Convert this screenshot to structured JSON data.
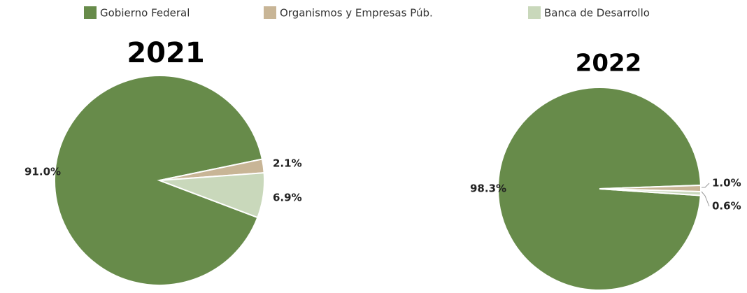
{
  "chart_data": [
    {
      "type": "pie",
      "title": "2021",
      "categories": [
        "Gobierno Federal",
        "Organismos y Empresas Púb.",
        "Banca de Desarrollo"
      ],
      "values": [
        91.0,
        2.1,
        6.9
      ],
      "value_labels": [
        "91.0%",
        "2.1%",
        "6.9%"
      ],
      "colors": [
        "#678b4a",
        "#c8b596",
        "#c9d8bb"
      ]
    },
    {
      "type": "pie",
      "title": "2022",
      "categories": [
        "Gobierno Federal",
        "Organismos y Empresas Púb.",
        "Banca de Desarrollo"
      ],
      "values": [
        98.3,
        1.0,
        0.6
      ],
      "value_labels": [
        "98.3%",
        "1.0%",
        "0.6%"
      ],
      "colors": [
        "#678b4a",
        "#c8b596",
        "#c9d8bb"
      ]
    }
  ]
}
